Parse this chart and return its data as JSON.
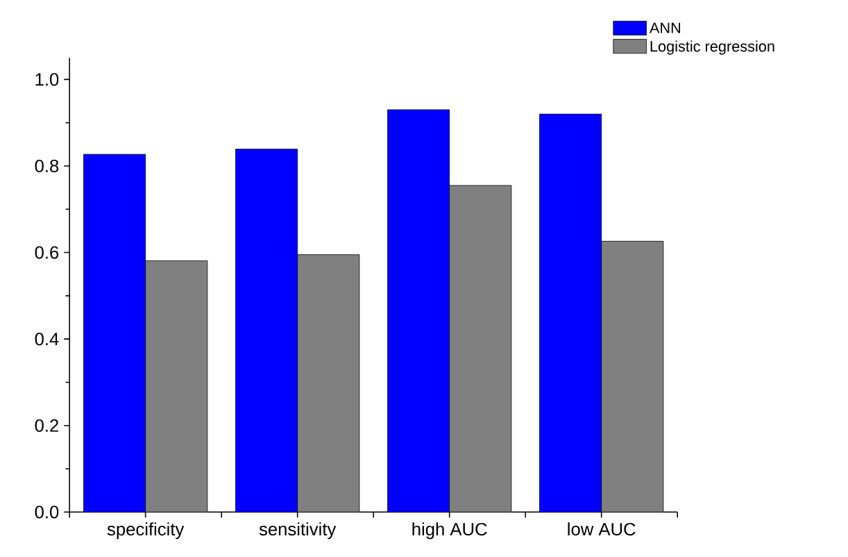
{
  "chart_data": {
    "type": "bar",
    "categories": [
      "specificity",
      "sensitivity",
      "high AUC",
      "low AUC"
    ],
    "series": [
      {
        "name": "ANN",
        "color": "#0000ff",
        "values": [
          0.827,
          0.839,
          0.93,
          0.92
        ]
      },
      {
        "name": "Logistic regression",
        "color": "#808080",
        "values": [
          0.581,
          0.595,
          0.755,
          0.626
        ]
      }
    ],
    "ylim": [
      0,
      1.05
    ],
    "yticks": [
      {
        "value": 0,
        "label": "0.0"
      },
      0.2,
      0.4,
      0.6,
      0.8,
      {
        "value": 1,
        "label": "1.0"
      }
    ],
    "legend": "top right",
    "grid": false
  }
}
